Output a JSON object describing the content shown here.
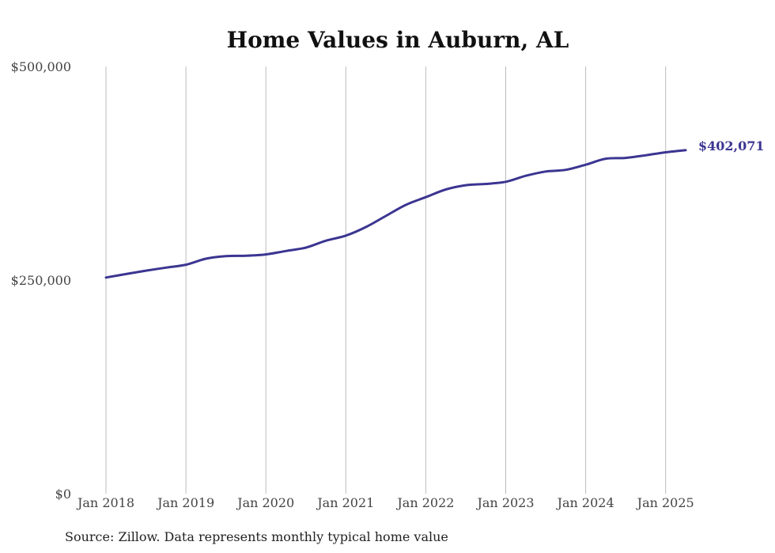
{
  "chart_data": {
    "type": "line",
    "title": "Home Values in Auburn, AL",
    "source": "Source: Zillow. Data represents monthly typical home value",
    "x_ticks": [
      "Jan 2018",
      "Jan 2019",
      "Jan 2020",
      "Jan 2021",
      "Jan 2022",
      "Jan 2023",
      "Jan 2024",
      "Jan 2025"
    ],
    "y_ticks": [
      {
        "value": 0,
        "label": "$0"
      },
      {
        "value": 250000,
        "label": "$250,000"
      },
      {
        "value": 500000,
        "label": "$500,000"
      }
    ],
    "ylim": [
      0,
      500000
    ],
    "grid": "vertical",
    "line_color": "#3b3591",
    "end_label": "$402,071",
    "series": [
      {
        "x": [
          "2018-01",
          "2018-04",
          "2018-07",
          "2018-10",
          "2019-01",
          "2019-04",
          "2019-07",
          "2019-10",
          "2020-01",
          "2020-04",
          "2020-07",
          "2020-10",
          "2021-01",
          "2021-04",
          "2021-07",
          "2021-10",
          "2022-01",
          "2022-04",
          "2022-07",
          "2022-10",
          "2023-01",
          "2023-04",
          "2023-07",
          "2023-10",
          "2024-01",
          "2024-04",
          "2024-07",
          "2024-10",
          "2025-01",
          "2025-04"
        ],
        "values": [
          253000,
          257000,
          261000,
          264500,
          268000,
          275000,
          278000,
          278500,
          280000,
          284000,
          288000,
          296000,
          302000,
          312000,
          325000,
          338000,
          347000,
          356000,
          361000,
          362500,
          365000,
          372000,
          377000,
          379000,
          385000,
          392000,
          393000,
          396000,
          399500,
          402071
        ]
      }
    ]
  }
}
